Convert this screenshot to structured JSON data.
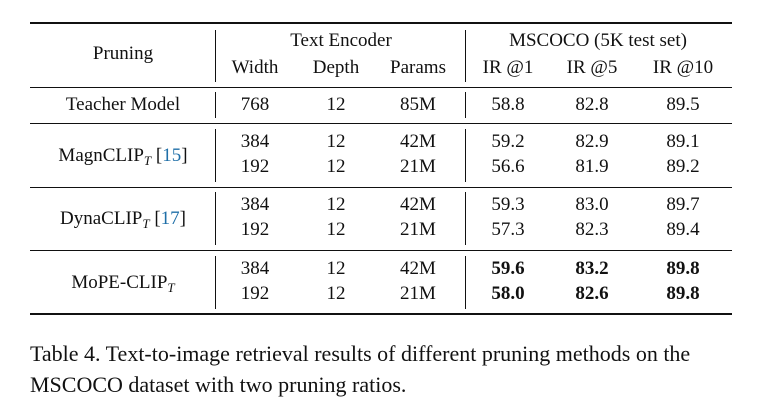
{
  "header": {
    "pruning": "Pruning",
    "text_encoder": "Text Encoder",
    "mscoco": "MSCOCO (5K test set)",
    "width": "Width",
    "depth": "Depth",
    "params": "Params",
    "ir1": "IR @1",
    "ir5": "IR @5",
    "ir10": "IR @10"
  },
  "teacher": {
    "label": "Teacher Model",
    "width": "768",
    "depth": "12",
    "params": "85M",
    "ir1": "58.8",
    "ir5": "82.8",
    "ir10": "89.5"
  },
  "groups": [
    {
      "name": "MagnCLIP",
      "sub": "T",
      "ref": "15",
      "rows": [
        {
          "width": "384",
          "depth": "12",
          "params": "42M",
          "ir1": "59.2",
          "ir5": "82.9",
          "ir10": "89.1"
        },
        {
          "width": "192",
          "depth": "12",
          "params": "21M",
          "ir1": "56.6",
          "ir5": "81.9",
          "ir10": "89.2"
        }
      ]
    },
    {
      "name": "DynaCLIP",
      "sub": "T",
      "ref": "17",
      "rows": [
        {
          "width": "384",
          "depth": "12",
          "params": "42M",
          "ir1": "59.3",
          "ir5": "83.0",
          "ir10": "89.7"
        },
        {
          "width": "192",
          "depth": "12",
          "params": "21M",
          "ir1": "57.3",
          "ir5": "82.3",
          "ir10": "89.4"
        }
      ]
    },
    {
      "name": "MoPE-CLIP",
      "sub": "T",
      "ref": "",
      "rows": [
        {
          "width": "384",
          "depth": "12",
          "params": "42M",
          "ir1": "59.6",
          "ir5": "83.2",
          "ir10": "89.8"
        },
        {
          "width": "192",
          "depth": "12",
          "params": "21M",
          "ir1": "58.0",
          "ir5": "82.6",
          "ir10": "89.8"
        }
      ]
    }
  ],
  "caption": "Table 4. Text-to-image retrieval results of different pruning methods on the MSCOCO dataset with two pruning ratios."
}
